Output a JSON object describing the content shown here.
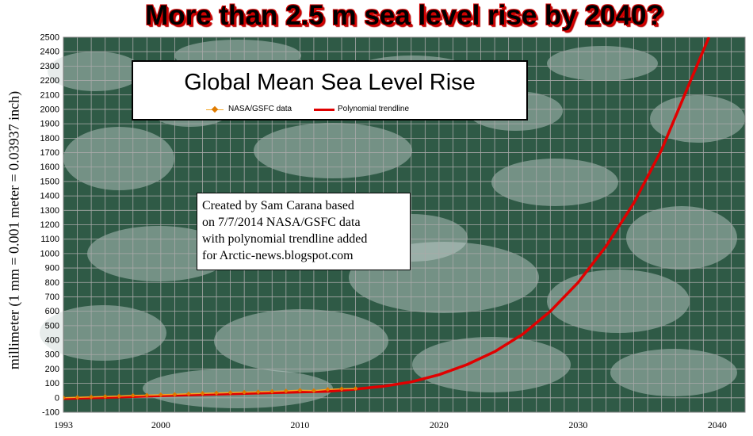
{
  "headline": "More than 2.5 m sea level rise by 2040?",
  "annotation": {
    "lines": [
      "Created by Sam Carana based",
      "on 7/7/2014 NASA/GSFC data",
      "with polynomial trendline added",
      "for Arctic-news.blogspot.com"
    ]
  },
  "colors": {
    "trendline": "#e00000",
    "data": "#f5a623",
    "grid": "#a9a9a9",
    "headline_outline": "#d40000"
  },
  "chart_data": {
    "type": "line",
    "title": "Global Mean Sea Level Rise",
    "ylabel": "millimeter (1 mm = 0.001 meter = 0.03937 inch)",
    "xlabel": "",
    "xlim": [
      1993,
      2042
    ],
    "ylim": [
      -100,
      2500
    ],
    "x_ticks": [
      1993,
      2000,
      2010,
      2020,
      2030,
      2040
    ],
    "y_tick_step": 100,
    "grid": true,
    "legend_position": "top-center",
    "series": [
      {
        "name": "NASA/GSFC data",
        "marker": "diamond",
        "x": [
          1993,
          1994,
          1995,
          1996,
          1997,
          1998,
          1999,
          2000,
          2001,
          2002,
          2003,
          2004,
          2005,
          2006,
          2007,
          2008,
          2009,
          2010,
          2011,
          2012,
          2013,
          2014
        ],
        "values": [
          0,
          3,
          6,
          9,
          12,
          16,
          18,
          21,
          24,
          28,
          31,
          33,
          36,
          39,
          41,
          44,
          48,
          52,
          50,
          58,
          62,
          64
        ]
      },
      {
        "name": "Polynomial trendline",
        "x": [
          1993,
          1996,
          2000,
          2004,
          2008,
          2012,
          2014,
          2016,
          2018,
          2020,
          2022,
          2024,
          2026,
          2028,
          2030,
          2032,
          2034,
          2036,
          2038,
          2039.4
        ],
        "values": [
          -5,
          2,
          15,
          25,
          35,
          45,
          60,
          80,
          110,
          160,
          230,
          320,
          440,
          600,
          800,
          1050,
          1350,
          1720,
          2180,
          2500
        ]
      }
    ]
  }
}
